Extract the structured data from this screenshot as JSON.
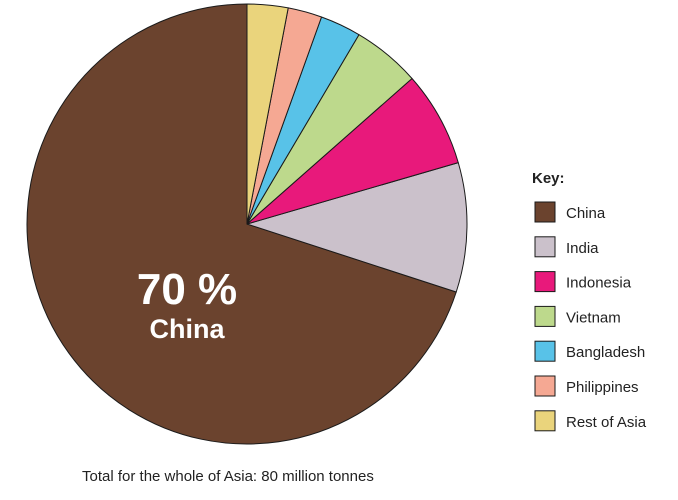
{
  "chart_data": {
    "type": "pie",
    "categories": [
      "China",
      "India",
      "Indonesia",
      "Vietnam",
      "Bangladesh",
      "Philippines",
      "Rest of Asia"
    ],
    "values": [
      70,
      9.5,
      7,
      5,
      3,
      2.5,
      3
    ],
    "colors": [
      "#6b432e",
      "#cbc1cb",
      "#e8197b",
      "#bdd98c",
      "#58c2e8",
      "#f5a893",
      "#ead47c"
    ],
    "legend": {
      "title": "Key:",
      "placement": "right"
    },
    "annotation": {
      "percent": "70 %",
      "label": "China"
    },
    "footnote": "Total for the whole of Asia: 80 million tonnes"
  }
}
